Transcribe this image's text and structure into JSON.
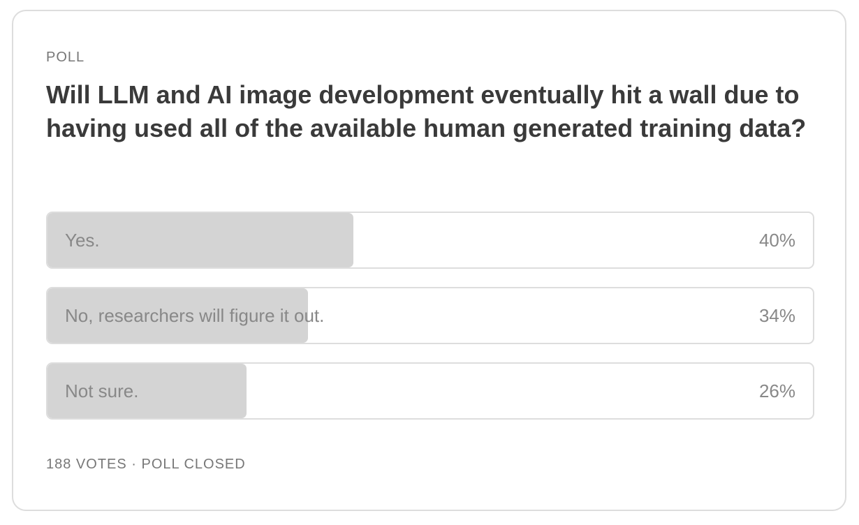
{
  "header": {
    "kicker": "POLL",
    "question": "Will LLM and AI image development eventually hit a wall due to having used all of the available human generated training data?"
  },
  "poll": {
    "options": [
      "Yes.",
      "No, researchers will figure it out.",
      "Not sure."
    ],
    "values": [
      40,
      34,
      26
    ],
    "value_labels": [
      "40%",
      "34%",
      "26%"
    ],
    "color": "#d4d4d4"
  },
  "footer": "188 VOTES · POLL CLOSED"
}
